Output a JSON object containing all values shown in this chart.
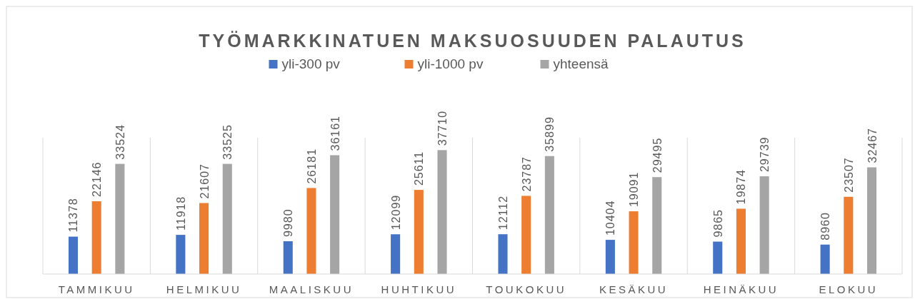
{
  "chart_data": {
    "type": "bar",
    "title": "TYÖMARKKINATUEN MAKSUOSUUDEN PALAUTUS",
    "categories": [
      "TAMMIKUU",
      "HELMIKUU",
      "MAALISKUU",
      "HUHTIKUU",
      "TOUKOKUU",
      "KESÄKUU",
      "HEINÄKUU",
      "ELOKUU"
    ],
    "series": [
      {
        "name": "yli-300 pv",
        "color": "#4472c4",
        "values": [
          11378,
          11918,
          9980,
          12099,
          12112,
          10404,
          9865,
          8960
        ]
      },
      {
        "name": "yli-1000 pv",
        "color": "#ed7d31",
        "values": [
          22146,
          21607,
          26181,
          25611,
          23787,
          19091,
          19874,
          23507
        ]
      },
      {
        "name": "yhteensä",
        "color": "#a5a5a5",
        "values": [
          33524,
          33525,
          36161,
          37710,
          35899,
          29495,
          29739,
          32467
        ]
      }
    ],
    "data_labels": true,
    "grid": "x",
    "legend": "top"
  }
}
